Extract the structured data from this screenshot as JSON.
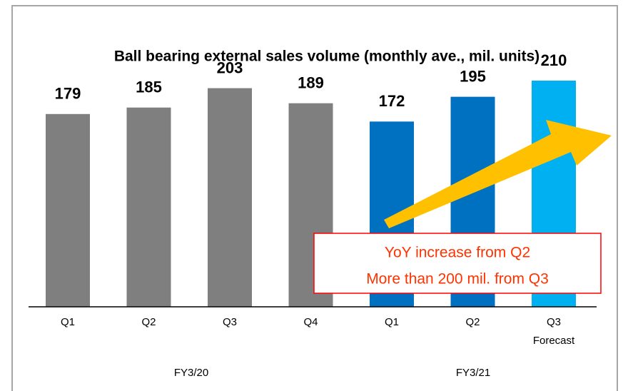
{
  "chart_data": {
    "type": "bar",
    "title": "Ball bearing external sales volume (monthly ave., mil. units)",
    "categories": [
      "Q1",
      "Q2",
      "Q3",
      "Q4",
      "Q1",
      "Q2",
      "Q3"
    ],
    "values": [
      179,
      185,
      203,
      189,
      172,
      195,
      210
    ],
    "colors": [
      "#7f7f7f",
      "#7f7f7f",
      "#7f7f7f",
      "#7f7f7f",
      "#0070c0",
      "#0070c0",
      "#00b0f0"
    ],
    "forecast_label": "Forecast",
    "groups": [
      "FY3/20",
      "FY3/21"
    ],
    "annotation": [
      "YoY increase from Q2",
      "More than 200 mil. from Q3"
    ]
  }
}
